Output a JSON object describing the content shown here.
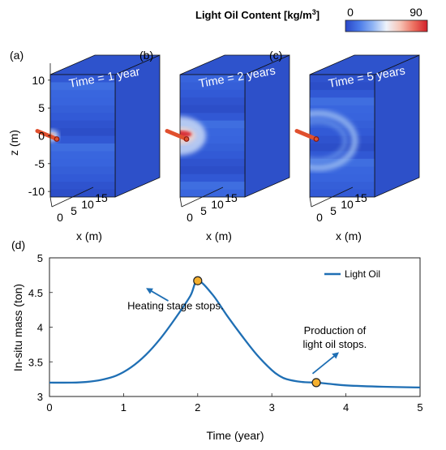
{
  "colorbar": {
    "label": "Light Oil Content [kg/m",
    "unit_sup": "3",
    "label_end": "]",
    "min_label": "0",
    "max_label": "90",
    "colors": [
      "#2a46c8",
      "#4a7ae8",
      "#8fb4f4",
      "#eef3fb",
      "#f6c4b6",
      "#ec7060",
      "#d2202a"
    ]
  },
  "panels": [
    {
      "letter": "(a)",
      "time_label": "Time = 1 year",
      "xlabel": "x (m)",
      "x_ticks": [
        "0",
        "5",
        "10",
        "15"
      ],
      "plume": {
        "extent_m": 2.0,
        "intensity": 0.35
      }
    },
    {
      "letter": "(b)",
      "time_label": "Time = 2 years",
      "xlabel": "x (m)",
      "x_ticks": [
        "0",
        "5",
        "10",
        "15"
      ],
      "plume": {
        "extent_m": 6.0,
        "intensity": 1.0
      }
    },
    {
      "letter": "(c)",
      "time_label": "Time = 5 years",
      "xlabel": "x (m)",
      "x_ticks": [
        "0",
        "5",
        "10",
        "15"
      ],
      "plume": {
        "extent_m": 9.0,
        "intensity": 0.15
      }
    }
  ],
  "z_axis": {
    "label": "z (m)",
    "ticks": [
      "10",
      "5",
      "0",
      "-5",
      "-10"
    ]
  },
  "chart_data": {
    "type": "line",
    "panel_letter": "(d)",
    "xlabel": "Time (year)",
    "ylabel": "In-situ mass (ton)",
    "xlim": [
      0,
      5
    ],
    "ylim": [
      3,
      5
    ],
    "x_ticks": [
      0,
      1,
      2,
      3,
      4,
      5
    ],
    "y_ticks": [
      3,
      3.5,
      4,
      4.5,
      5
    ],
    "y_tick_labels": [
      "3",
      "3.5",
      "4",
      "4.5",
      "5"
    ],
    "grid": false,
    "legend_position": "top-right",
    "series": [
      {
        "name": "Light Oil",
        "color": "#1f6fb4",
        "x": [
          0,
          0.3,
          0.5,
          0.7,
          0.9,
          1.1,
          1.3,
          1.5,
          1.7,
          1.9,
          2.0,
          2.2,
          2.4,
          2.6,
          2.8,
          3.0,
          3.1,
          3.2,
          3.4,
          3.6,
          3.8,
          4.0,
          4.5,
          5.0
        ],
        "y": [
          3.2,
          3.2,
          3.21,
          3.24,
          3.3,
          3.42,
          3.6,
          3.84,
          4.13,
          4.45,
          4.67,
          4.47,
          4.16,
          3.87,
          3.6,
          3.38,
          3.3,
          3.25,
          3.21,
          3.2,
          3.18,
          3.16,
          3.14,
          3.13
        ]
      }
    ],
    "markers": [
      {
        "x": 2.0,
        "y": 4.67,
        "color": "#f5b02e"
      },
      {
        "x": 3.6,
        "y": 3.2,
        "color": "#f5b02e"
      }
    ],
    "annotations": [
      {
        "lines": [
          "Heating stage stops."
        ],
        "text_x": 1.7,
        "text_y": 4.26,
        "arrow_from": [
          1.45,
          4.52
        ],
        "arrow_to": [
          1.35,
          4.52
        ]
      },
      {
        "lines": [
          "Production of",
          "light oil stops."
        ],
        "text_x": 3.85,
        "text_y": 3.9,
        "arrow_from": [
          3.55,
          3.33
        ],
        "arrow_to": [
          3.78,
          3.53
        ]
      }
    ]
  }
}
